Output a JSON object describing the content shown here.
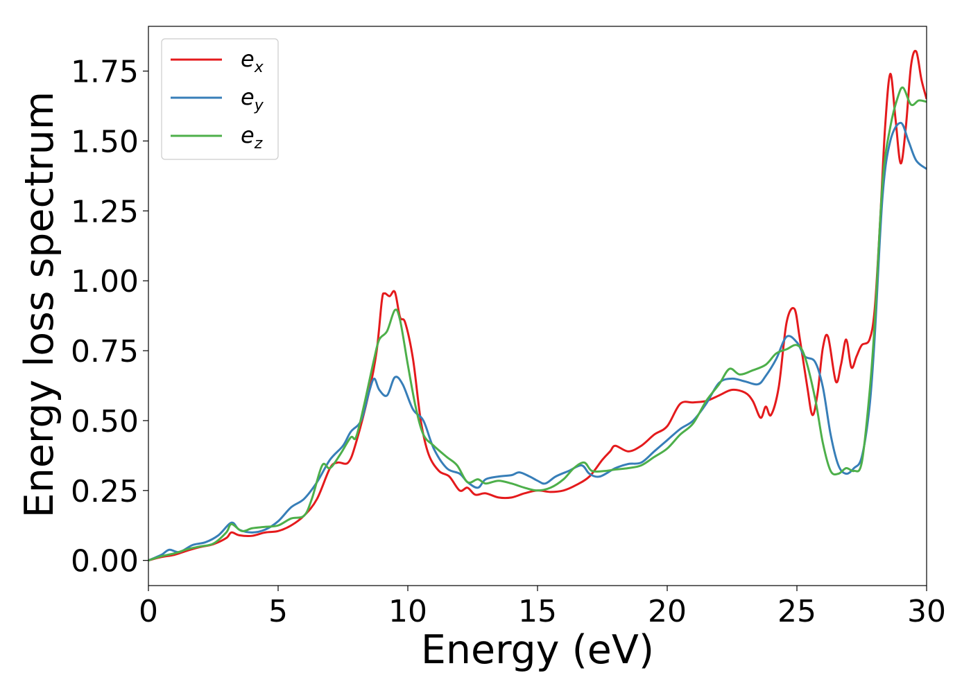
{
  "chart_data": {
    "type": "line",
    "title": "",
    "xlabel": "Energy (eV)",
    "ylabel": "Energy loss spectrum",
    "xlim": [
      0,
      30
    ],
    "ylim": [
      -0.09,
      1.91
    ],
    "xticks": [
      0,
      5,
      10,
      15,
      20,
      25,
      30
    ],
    "xtick_labels": [
      "0",
      "5",
      "10",
      "15",
      "20",
      "25",
      "30"
    ],
    "yticks": [
      0.0,
      0.25,
      0.5,
      0.75,
      1.0,
      1.25,
      1.5,
      1.75
    ],
    "ytick_labels": [
      "0.00",
      "0.25",
      "0.50",
      "0.75",
      "1.00",
      "1.25",
      "1.50",
      "1.75"
    ],
    "grid": false,
    "legend_position": "top-left",
    "series": [
      {
        "name": "e_x",
        "legend_base": "e",
        "legend_sub": "x",
        "color": "#e41a1c",
        "points": [
          [
            0,
            0
          ],
          [
            0.5,
            0.012
          ],
          [
            1.0,
            0.02
          ],
          [
            1.5,
            0.035
          ],
          [
            2.0,
            0.048
          ],
          [
            2.5,
            0.058
          ],
          [
            3.0,
            0.08
          ],
          [
            3.2,
            0.1
          ],
          [
            3.5,
            0.09
          ],
          [
            4.0,
            0.088
          ],
          [
            4.5,
            0.1
          ],
          [
            5.0,
            0.105
          ],
          [
            5.5,
            0.125
          ],
          [
            6.0,
            0.16
          ],
          [
            6.5,
            0.22
          ],
          [
            7.0,
            0.33
          ],
          [
            7.3,
            0.35
          ],
          [
            7.7,
            0.35
          ],
          [
            8.0,
            0.42
          ],
          [
            8.5,
            0.6
          ],
          [
            8.8,
            0.75
          ],
          [
            9.0,
            0.93
          ],
          [
            9.1,
            0.955
          ],
          [
            9.3,
            0.945
          ],
          [
            9.5,
            0.96
          ],
          [
            9.7,
            0.87
          ],
          [
            9.9,
            0.85
          ],
          [
            10.2,
            0.72
          ],
          [
            10.5,
            0.5
          ],
          [
            10.8,
            0.38
          ],
          [
            11.2,
            0.32
          ],
          [
            11.6,
            0.3
          ],
          [
            12.0,
            0.25
          ],
          [
            12.3,
            0.26
          ],
          [
            12.6,
            0.235
          ],
          [
            13.0,
            0.24
          ],
          [
            13.5,
            0.225
          ],
          [
            14.0,
            0.225
          ],
          [
            14.5,
            0.24
          ],
          [
            15.0,
            0.25
          ],
          [
            15.5,
            0.245
          ],
          [
            16.0,
            0.25
          ],
          [
            16.5,
            0.27
          ],
          [
            17.0,
            0.3
          ],
          [
            17.5,
            0.36
          ],
          [
            17.8,
            0.39
          ],
          [
            18.0,
            0.41
          ],
          [
            18.5,
            0.39
          ],
          [
            19.0,
            0.41
          ],
          [
            19.5,
            0.45
          ],
          [
            20.0,
            0.48
          ],
          [
            20.5,
            0.56
          ],
          [
            21.0,
            0.565
          ],
          [
            21.5,
            0.57
          ],
          [
            22.0,
            0.59
          ],
          [
            22.5,
            0.61
          ],
          [
            23.0,
            0.6
          ],
          [
            23.3,
            0.57
          ],
          [
            23.6,
            0.51
          ],
          [
            23.8,
            0.55
          ],
          [
            24.0,
            0.52
          ],
          [
            24.3,
            0.62
          ],
          [
            24.6,
            0.85
          ],
          [
            24.9,
            0.9
          ],
          [
            25.1,
            0.8
          ],
          [
            25.4,
            0.62
          ],
          [
            25.6,
            0.52
          ],
          [
            25.8,
            0.6
          ],
          [
            26.0,
            0.76
          ],
          [
            26.2,
            0.8
          ],
          [
            26.5,
            0.64
          ],
          [
            26.7,
            0.7
          ],
          [
            26.9,
            0.79
          ],
          [
            27.1,
            0.69
          ],
          [
            27.3,
            0.73
          ],
          [
            27.5,
            0.77
          ],
          [
            27.8,
            0.79
          ],
          [
            28.0,
            0.9
          ],
          [
            28.2,
            1.2
          ],
          [
            28.4,
            1.55
          ],
          [
            28.6,
            1.74
          ],
          [
            28.8,
            1.58
          ],
          [
            29.0,
            1.42
          ],
          [
            29.2,
            1.55
          ],
          [
            29.4,
            1.77
          ],
          [
            29.6,
            1.82
          ],
          [
            29.8,
            1.72
          ],
          [
            30.0,
            1.65
          ]
        ]
      },
      {
        "name": "e_y",
        "legend_base": "e",
        "legend_sub": "y",
        "color": "#377eb8",
        "points": [
          [
            0,
            0
          ],
          [
            0.5,
            0.02
          ],
          [
            0.8,
            0.038
          ],
          [
            1.2,
            0.03
          ],
          [
            1.7,
            0.055
          ],
          [
            2.2,
            0.065
          ],
          [
            2.7,
            0.09
          ],
          [
            3.2,
            0.135
          ],
          [
            3.5,
            0.11
          ],
          [
            4.0,
            0.1
          ],
          [
            4.5,
            0.11
          ],
          [
            5.0,
            0.14
          ],
          [
            5.5,
            0.19
          ],
          [
            6.0,
            0.22
          ],
          [
            6.5,
            0.28
          ],
          [
            7.0,
            0.36
          ],
          [
            7.5,
            0.41
          ],
          [
            7.8,
            0.46
          ],
          [
            8.2,
            0.5
          ],
          [
            8.5,
            0.6
          ],
          [
            8.7,
            0.65
          ],
          [
            8.9,
            0.61
          ],
          [
            9.2,
            0.59
          ],
          [
            9.5,
            0.655
          ],
          [
            9.8,
            0.63
          ],
          [
            10.2,
            0.54
          ],
          [
            10.6,
            0.5
          ],
          [
            11.0,
            0.4
          ],
          [
            11.5,
            0.33
          ],
          [
            12.0,
            0.31
          ],
          [
            12.3,
            0.28
          ],
          [
            12.7,
            0.26
          ],
          [
            13.0,
            0.29
          ],
          [
            13.5,
            0.3
          ],
          [
            14.0,
            0.305
          ],
          [
            14.3,
            0.315
          ],
          [
            14.7,
            0.3
          ],
          [
            15.0,
            0.285
          ],
          [
            15.3,
            0.275
          ],
          [
            15.7,
            0.3
          ],
          [
            16.2,
            0.32
          ],
          [
            16.7,
            0.34
          ],
          [
            17.0,
            0.31
          ],
          [
            17.4,
            0.3
          ],
          [
            18.0,
            0.33
          ],
          [
            18.5,
            0.345
          ],
          [
            19.0,
            0.35
          ],
          [
            19.5,
            0.39
          ],
          [
            20.0,
            0.43
          ],
          [
            20.5,
            0.47
          ],
          [
            21.0,
            0.5
          ],
          [
            21.5,
            0.56
          ],
          [
            22.0,
            0.635
          ],
          [
            22.5,
            0.65
          ],
          [
            23.0,
            0.64
          ],
          [
            23.5,
            0.63
          ],
          [
            23.8,
            0.66
          ],
          [
            24.2,
            0.72
          ],
          [
            24.6,
            0.8
          ],
          [
            25.0,
            0.78
          ],
          [
            25.3,
            0.73
          ],
          [
            25.7,
            0.71
          ],
          [
            26.0,
            0.62
          ],
          [
            26.3,
            0.45
          ],
          [
            26.6,
            0.34
          ],
          [
            26.9,
            0.31
          ],
          [
            27.2,
            0.33
          ],
          [
            27.5,
            0.37
          ],
          [
            27.8,
            0.55
          ],
          [
            28.0,
            0.8
          ],
          [
            28.3,
            1.3
          ],
          [
            28.6,
            1.5
          ],
          [
            29.0,
            1.565
          ],
          [
            29.3,
            1.5
          ],
          [
            29.6,
            1.43
          ],
          [
            30.0,
            1.4
          ]
        ]
      },
      {
        "name": "e_z",
        "legend_base": "e",
        "legend_sub": "z",
        "color": "#4daf4a",
        "points": [
          [
            0,
            0
          ],
          [
            0.5,
            0.015
          ],
          [
            1.0,
            0.025
          ],
          [
            1.5,
            0.04
          ],
          [
            2.0,
            0.05
          ],
          [
            2.5,
            0.06
          ],
          [
            3.0,
            0.1
          ],
          [
            3.2,
            0.13
          ],
          [
            3.6,
            0.105
          ],
          [
            4.0,
            0.115
          ],
          [
            4.5,
            0.12
          ],
          [
            5.0,
            0.125
          ],
          [
            5.5,
            0.15
          ],
          [
            6.0,
            0.16
          ],
          [
            6.3,
            0.22
          ],
          [
            6.7,
            0.34
          ],
          [
            7.0,
            0.33
          ],
          [
            7.4,
            0.38
          ],
          [
            7.8,
            0.44
          ],
          [
            8.0,
            0.44
          ],
          [
            8.3,
            0.55
          ],
          [
            8.7,
            0.72
          ],
          [
            8.9,
            0.79
          ],
          [
            9.2,
            0.82
          ],
          [
            9.5,
            0.895
          ],
          [
            9.7,
            0.86
          ],
          [
            10.0,
            0.7
          ],
          [
            10.3,
            0.55
          ],
          [
            10.6,
            0.45
          ],
          [
            11.0,
            0.41
          ],
          [
            11.5,
            0.37
          ],
          [
            11.9,
            0.34
          ],
          [
            12.3,
            0.28
          ],
          [
            12.7,
            0.29
          ],
          [
            13.0,
            0.275
          ],
          [
            13.5,
            0.285
          ],
          [
            14.0,
            0.275
          ],
          [
            14.5,
            0.26
          ],
          [
            15.0,
            0.25
          ],
          [
            15.5,
            0.26
          ],
          [
            16.0,
            0.29
          ],
          [
            16.4,
            0.33
          ],
          [
            16.8,
            0.35
          ],
          [
            17.1,
            0.32
          ],
          [
            17.6,
            0.32
          ],
          [
            18.0,
            0.325
          ],
          [
            18.5,
            0.33
          ],
          [
            19.0,
            0.34
          ],
          [
            19.5,
            0.37
          ],
          [
            20.0,
            0.4
          ],
          [
            20.5,
            0.45
          ],
          [
            21.0,
            0.49
          ],
          [
            21.5,
            0.57
          ],
          [
            22.0,
            0.63
          ],
          [
            22.4,
            0.685
          ],
          [
            22.8,
            0.665
          ],
          [
            23.3,
            0.68
          ],
          [
            23.8,
            0.7
          ],
          [
            24.2,
            0.74
          ],
          [
            24.6,
            0.755
          ],
          [
            25.0,
            0.77
          ],
          [
            25.3,
            0.73
          ],
          [
            25.7,
            0.58
          ],
          [
            26.0,
            0.42
          ],
          [
            26.3,
            0.32
          ],
          [
            26.6,
            0.31
          ],
          [
            26.9,
            0.33
          ],
          [
            27.2,
            0.32
          ],
          [
            27.5,
            0.35
          ],
          [
            27.8,
            0.6
          ],
          [
            28.0,
            0.85
          ],
          [
            28.3,
            1.35
          ],
          [
            28.6,
            1.55
          ],
          [
            28.9,
            1.66
          ],
          [
            29.1,
            1.69
          ],
          [
            29.4,
            1.63
          ],
          [
            29.7,
            1.645
          ],
          [
            30.0,
            1.64
          ]
        ]
      }
    ]
  }
}
